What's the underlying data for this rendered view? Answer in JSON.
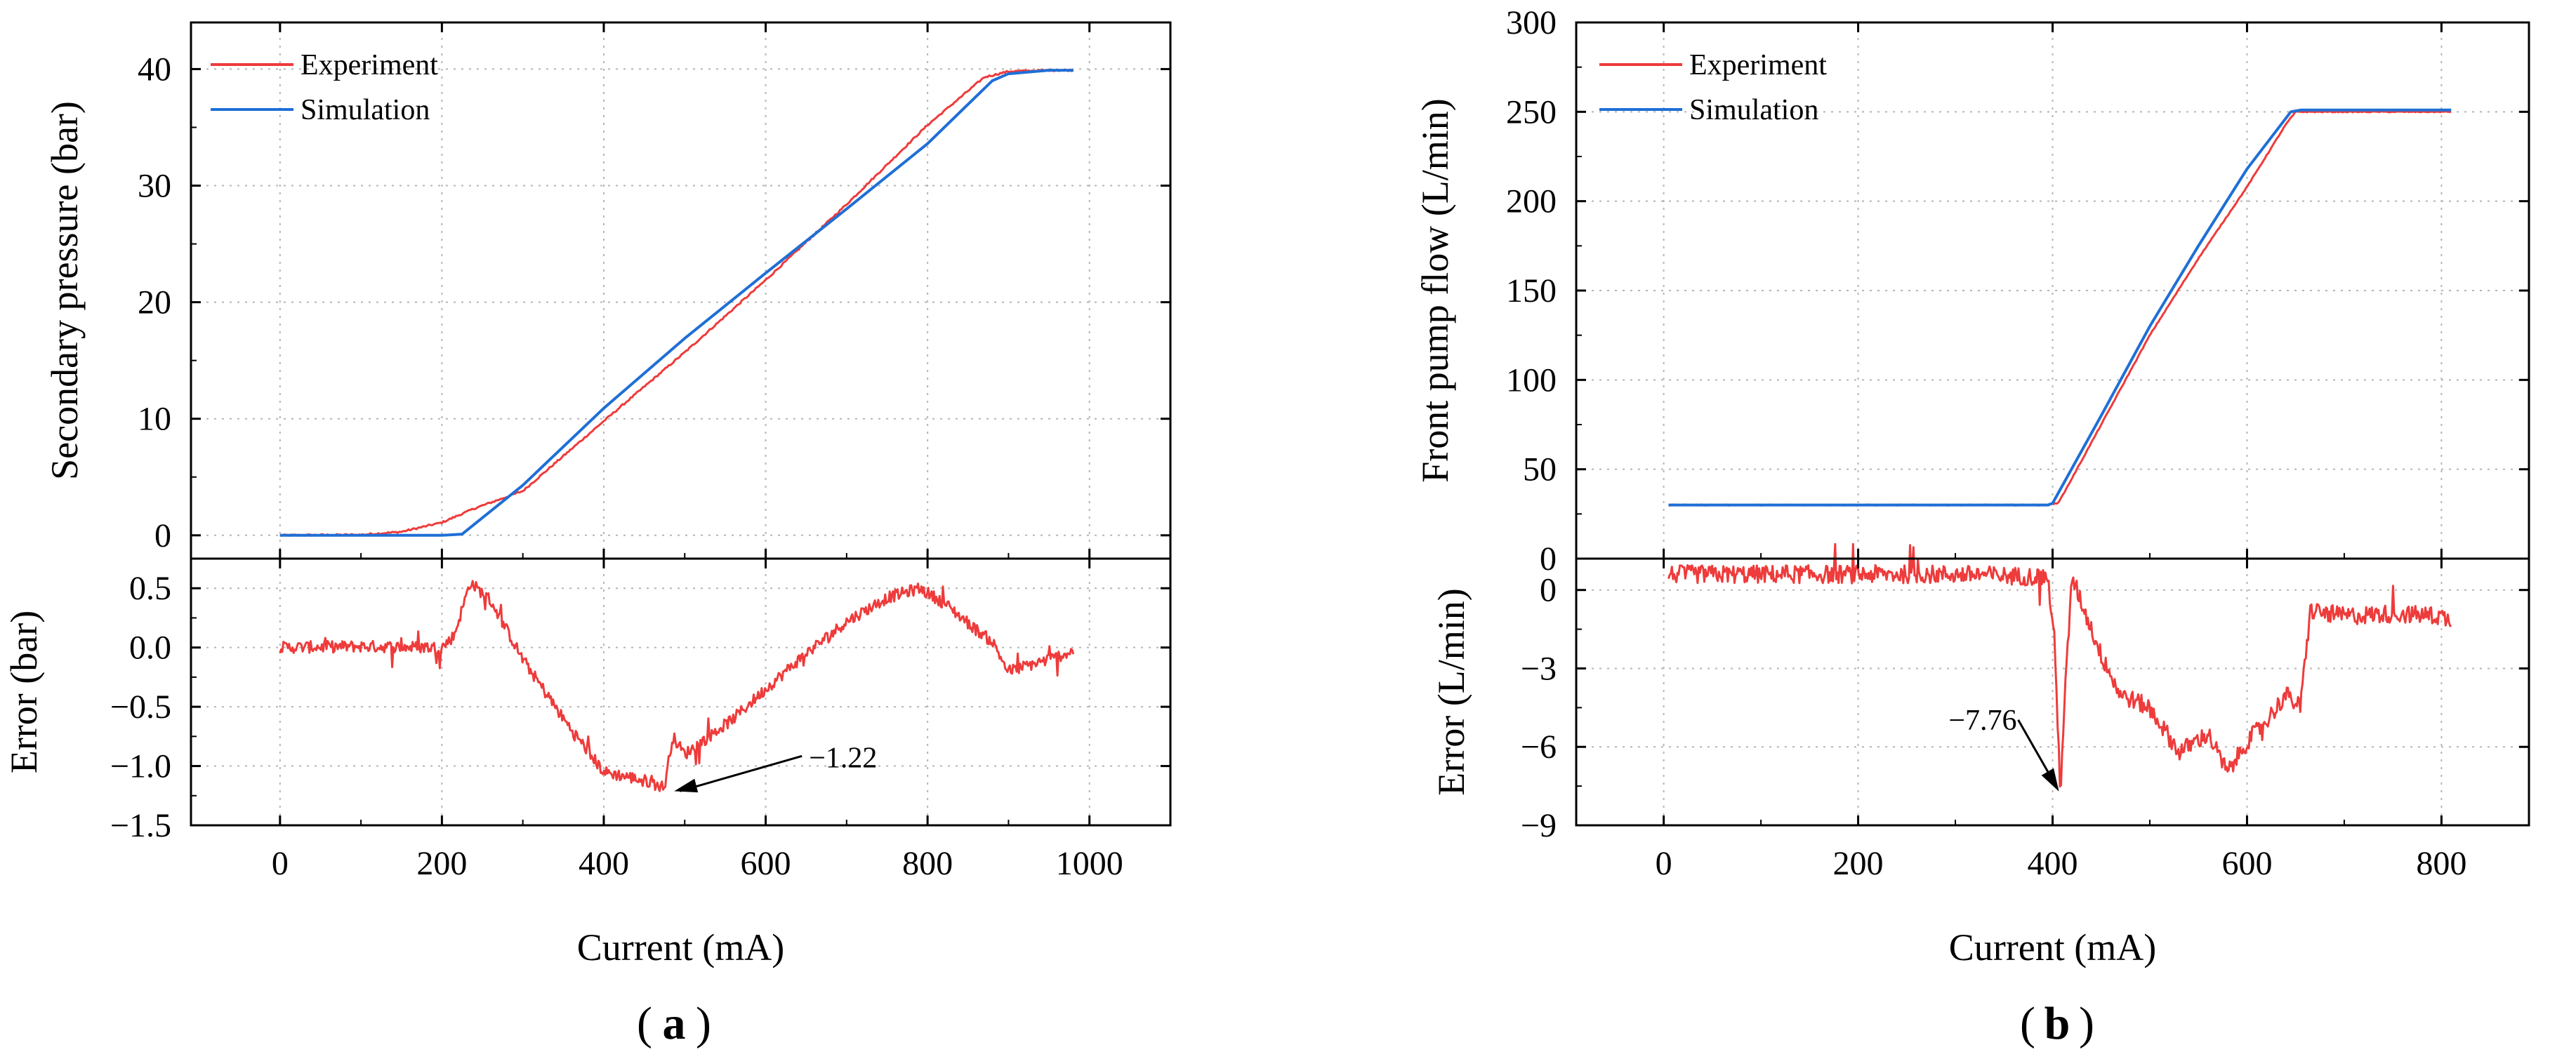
{
  "colors": {
    "experiment": "#ee3b3b",
    "simulation": "#1f6fd6",
    "grid": "#b5b5b5",
    "axis": "#000000"
  },
  "chart_data": [
    {
      "id": "a",
      "type": "line",
      "panel_label": "a",
      "xlabel": "Current (mA)",
      "xlim": [
        -110,
        1100
      ],
      "xticks": [
        0,
        200,
        400,
        600,
        800,
        1000
      ],
      "top": {
        "ylabel": "Secondary pressure (bar)",
        "ylim": [
          -2,
          44
        ],
        "yticks": [
          0,
          10,
          20,
          30,
          40
        ],
        "legend": [
          "Experiment",
          "Simulation"
        ],
        "legend_position": "top-left",
        "series": [
          {
            "name": "Experiment",
            "x": [
              0,
              100,
              150,
              200,
              240,
              300,
              400,
              500,
              600,
              700,
              800,
              870,
              900,
              950,
              980
            ],
            "y": [
              0,
              0.05,
              0.3,
              1.1,
              2.3,
              3.8,
              9.8,
              15.7,
              21.9,
              28.4,
              35.2,
              39.3,
              39.8,
              39.9,
              39.9
            ]
          },
          {
            "name": "Simulation",
            "x": [
              0,
              100,
              200,
              225,
              300,
              400,
              500,
              600,
              700,
              800,
              880,
              900,
              950,
              980
            ],
            "y": [
              0,
              0,
              0,
              0.1,
              4.3,
              10.9,
              16.9,
              22.5,
              28.0,
              33.6,
              39.0,
              39.6,
              39.9,
              39.9
            ]
          }
        ]
      },
      "bottom": {
        "ylabel": "Error (bar)",
        "ylim": [
          -1.5,
          0.75
        ],
        "yticks": [
          -1.5,
          -1.0,
          -0.5,
          0.0,
          0.5
        ],
        "ytick_labels": [
          "−1.5",
          "−1.0",
          "−0.5",
          "0.0",
          "0.5"
        ],
        "series": [
          {
            "name": "Error",
            "x": [
              0,
              100,
              200,
              215,
              235,
              260,
              300,
              350,
              400,
              450,
              475,
              485,
              500,
              520,
              560,
              600,
              650,
              700,
              750,
              790,
              820,
              860,
              880,
              900,
              950,
              980
            ],
            "y": [
              0,
              0.01,
              0.0,
              0.1,
              0.55,
              0.4,
              -0.1,
              -0.6,
              -1.05,
              -1.12,
              -1.18,
              -0.75,
              -0.9,
              -0.8,
              -0.6,
              -0.35,
              -0.05,
              0.22,
              0.42,
              0.5,
              0.38,
              0.15,
              0.05,
              -0.2,
              -0.1,
              -0.03
            ]
          }
        ],
        "annotation": {
          "text": "−1.22",
          "x": 480,
          "y": -1.2
        }
      }
    },
    {
      "id": "b",
      "type": "line",
      "panel_label": "b",
      "xlabel": "Current (mA)",
      "xlim": [
        -90,
        890
      ],
      "xticks": [
        0,
        200,
        400,
        600,
        800
      ],
      "top": {
        "ylabel": "Front pump flow (L/min)",
        "ylim": [
          0,
          300
        ],
        "yticks": [
          0,
          50,
          100,
          150,
          200,
          250,
          300
        ],
        "legend": [
          "Experiment",
          "Simulation"
        ],
        "legend_position": "top-left",
        "series": [
          {
            "name": "Experiment",
            "x": [
              5,
              100,
              200,
              300,
              395,
              405,
              410,
              420,
              450,
              500,
              550,
              600,
              640,
              650,
              660,
              700,
              810
            ],
            "y": [
              30,
              30,
              30,
              30,
              30,
              31,
              35,
              45,
              75,
              125,
              168,
              208,
              243,
              250,
              250,
              250,
              250
            ]
          },
          {
            "name": "Simulation",
            "x": [
              5,
              100,
              200,
              300,
              395,
              400,
              450,
              500,
              550,
              600,
              645,
              655,
              700,
              810
            ],
            "y": [
              30,
              30,
              30,
              30,
              30,
              31,
              80,
              130,
              175,
              218,
              250,
              251,
              251,
              251
            ]
          }
        ]
      },
      "bottom": {
        "ylabel": "Error (L/min)",
        "ylim": [
          -9,
          1.2
        ],
        "yticks": [
          -9,
          -6,
          -3,
          0
        ],
        "ytick_labels": [
          "−9",
          "−6",
          "−3",
          "0"
        ],
        "series": [
          {
            "name": "Error",
            "x": [
              5,
              100,
              200,
              300,
              395,
              402,
              408,
              412,
              420,
              430,
              450,
              470,
              500,
              530,
              560,
              580,
              600,
              620,
              640,
              655,
              665,
              700,
              750,
              800,
              810
            ],
            "y": [
              0.6,
              0.6,
              0.6,
              0.6,
              0.5,
              -2.0,
              -7.7,
              -4.5,
              0.5,
              -0.5,
              -2.5,
              -4.0,
              -4.5,
              -6.2,
              -5.5,
              -7.0,
              -5.8,
              -5.0,
              -4.0,
              -4.5,
              -0.8,
              -1.0,
              -0.9,
              -1.0,
              -1.2
            ]
          }
        ],
        "annotation": {
          "text": "−7.76",
          "x": 408,
          "y": -7.76
        }
      }
    }
  ]
}
